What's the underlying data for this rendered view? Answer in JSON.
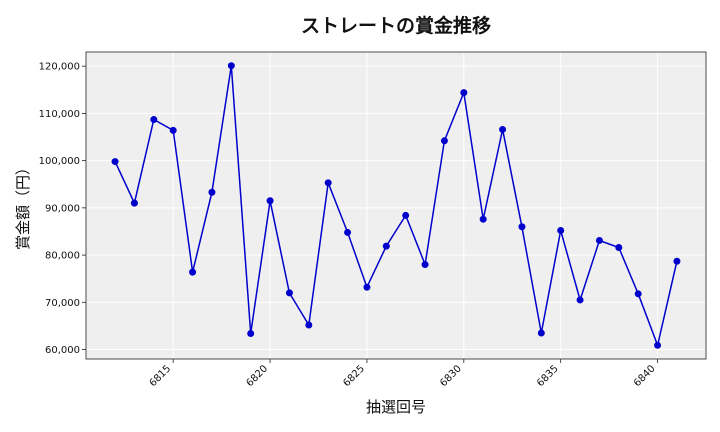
{
  "chart_data": {
    "type": "line",
    "title": "ストレートの賞金推移",
    "xlabel": "抽選回号",
    "ylabel": "賞金額（円）",
    "xlim": [
      6810.5,
      6842.5
    ],
    "ylim": [
      58000,
      123000
    ],
    "x_ticks": [
      6815,
      6820,
      6825,
      6830,
      6835,
      6840
    ],
    "y_ticks": [
      60000,
      70000,
      80000,
      90000,
      100000,
      110000,
      120000
    ],
    "y_tick_labels": [
      "60,000",
      "70,000",
      "80,000",
      "90,000",
      "100,000",
      "110,000",
      "120,000"
    ],
    "grid": true,
    "series": [
      {
        "color": "#0000cc",
        "x": [
          6812,
          6813,
          6814,
          6815,
          6816,
          6817,
          6818,
          6819,
          6820,
          6821,
          6822,
          6823,
          6824,
          6825,
          6826,
          6827,
          6828,
          6829,
          6830,
          6831,
          6832,
          6833,
          6834,
          6835,
          6836,
          6837,
          6838,
          6839,
          6840,
          6841
        ],
        "values": [
          99800,
          91000,
          108700,
          106400,
          76400,
          93300,
          120100,
          63400,
          91500,
          72000,
          65200,
          95300,
          84800,
          73200,
          81900,
          88400,
          78000,
          104200,
          114400,
          87600,
          106600,
          86000,
          63500,
          85200,
          70500,
          83100,
          81600,
          71800,
          60900,
          78700
        ]
      }
    ]
  }
}
